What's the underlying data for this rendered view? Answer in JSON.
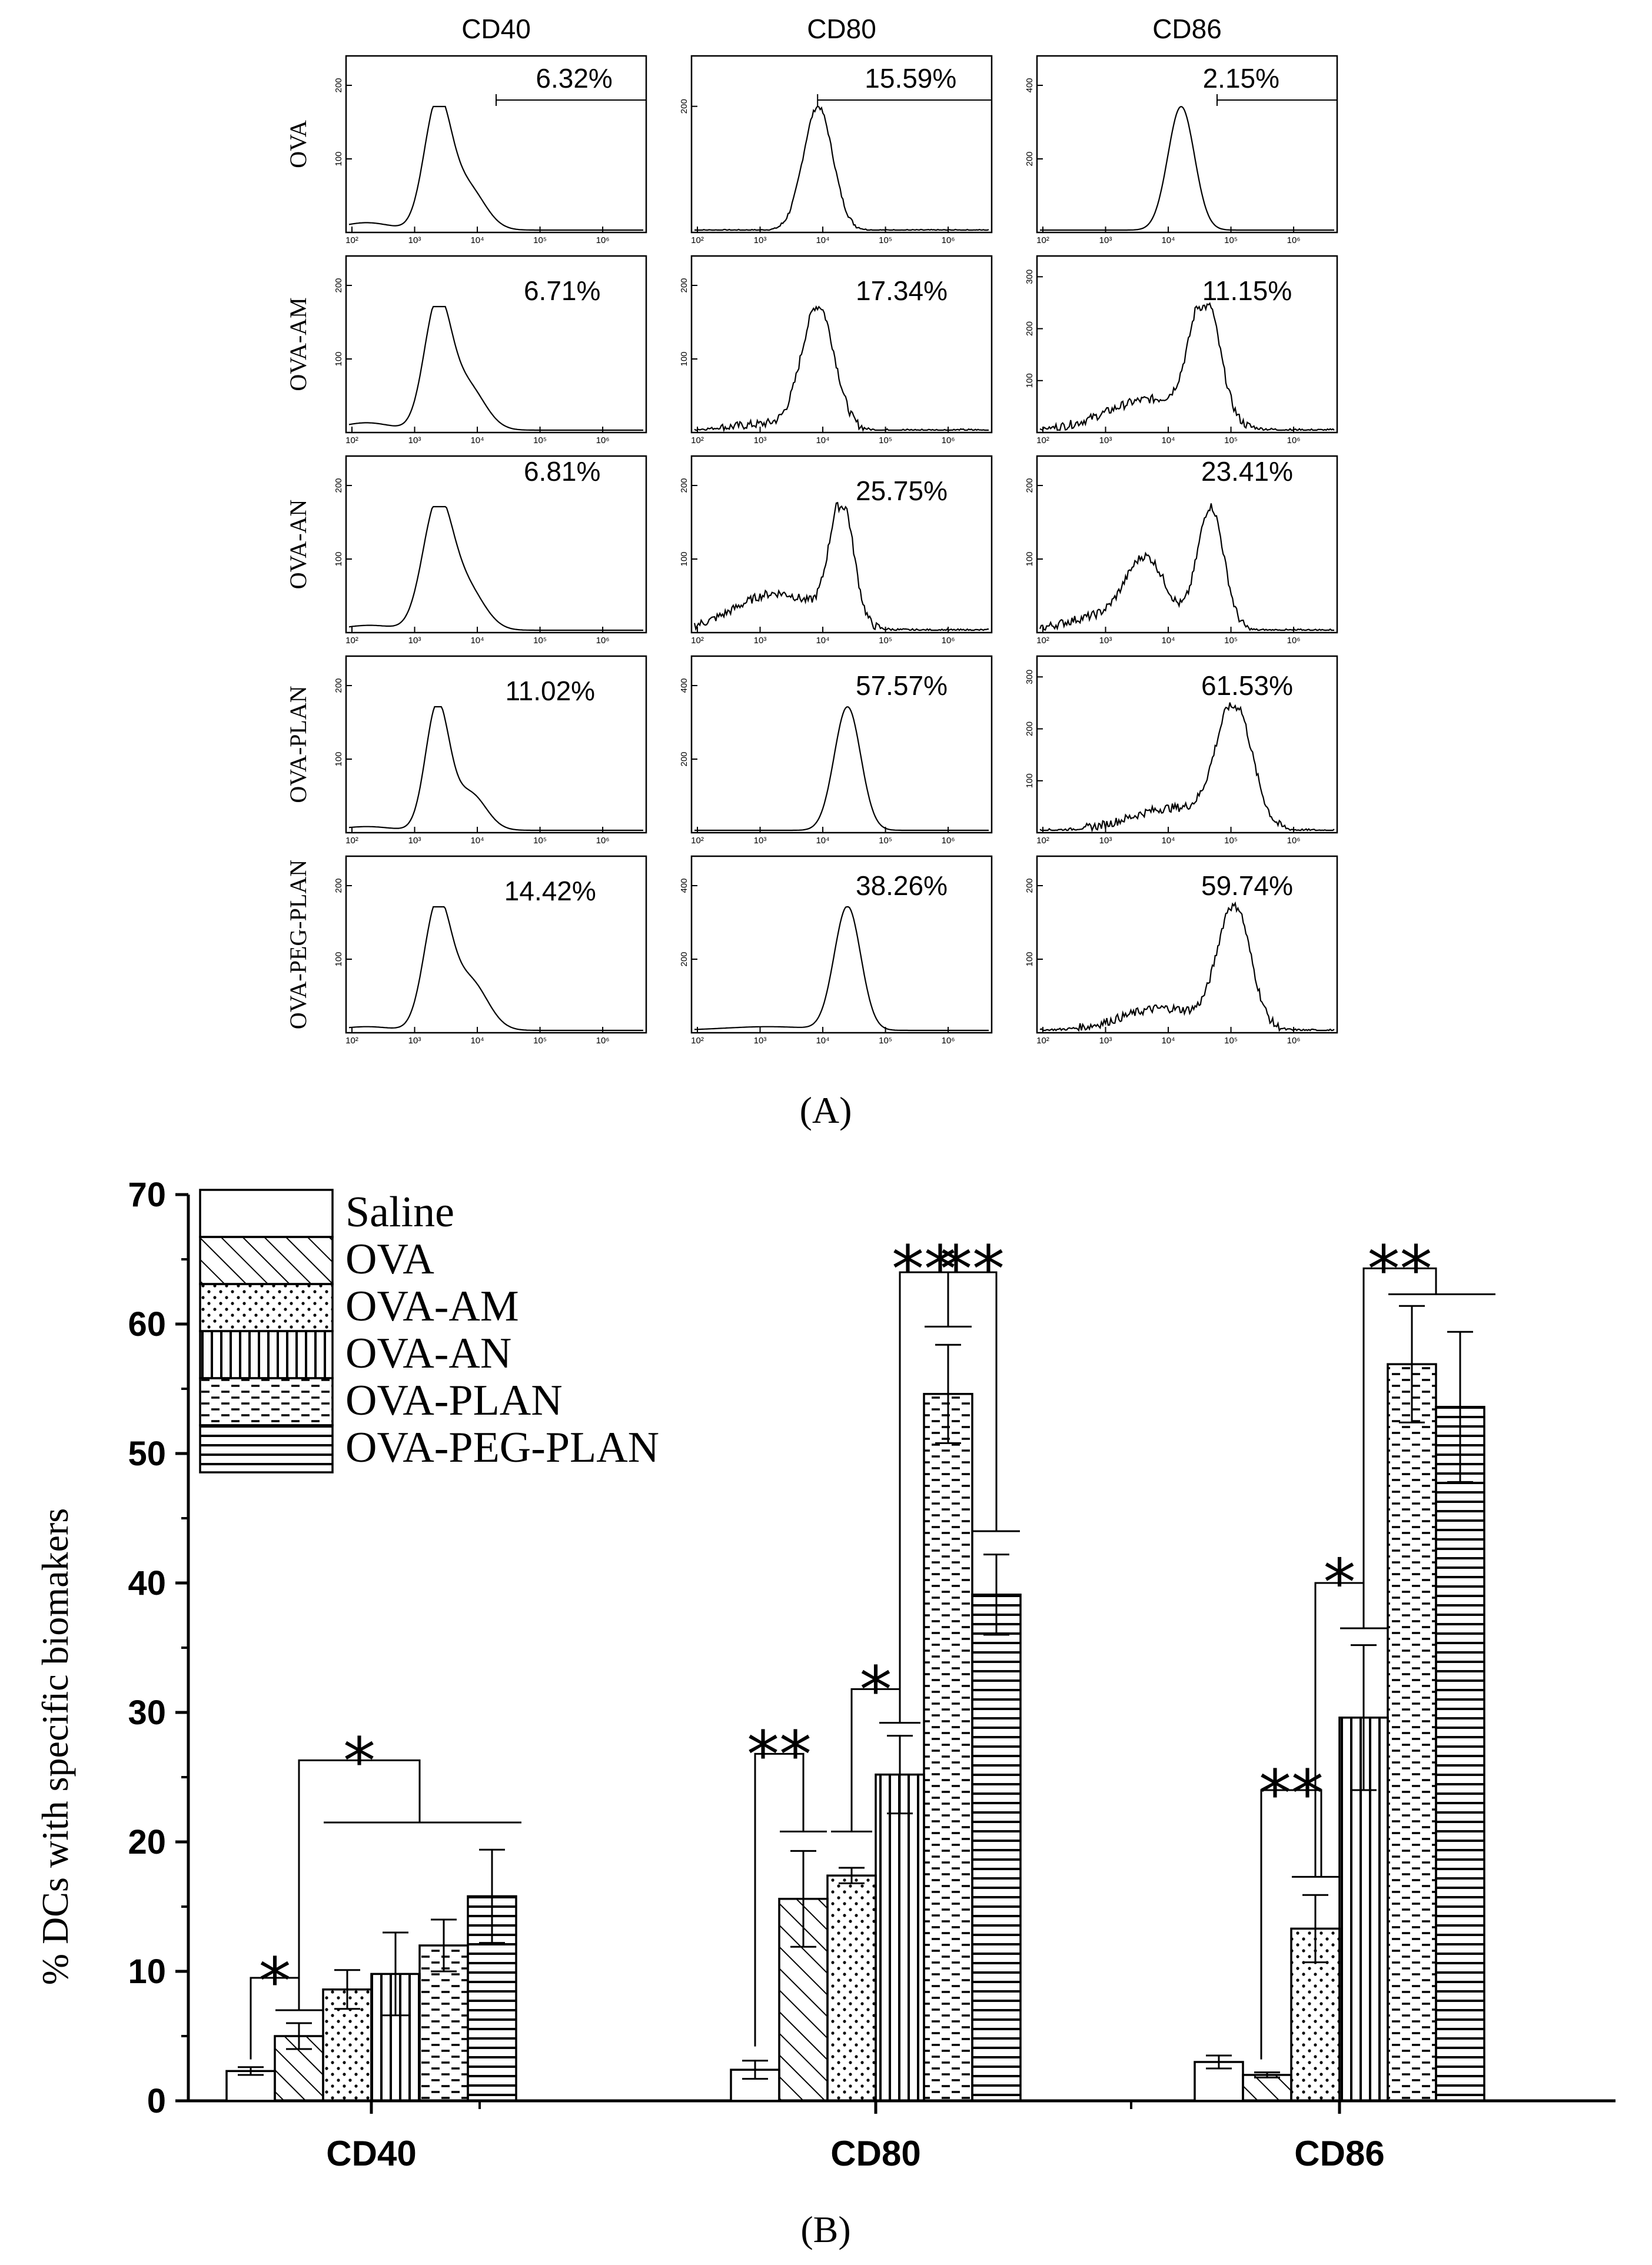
{
  "panel_a": {
    "columns": [
      "CD40",
      "CD80",
      "CD86"
    ],
    "rows": [
      "OVA",
      "OVA-AM",
      "OVA-AN",
      "OVA-PLAN",
      "OVA-PEG-PLAN"
    ],
    "percentages": [
      [
        "6.32%",
        "15.59%",
        "2.15%"
      ],
      [
        "6.71%",
        "17.34%",
        "11.15%"
      ],
      [
        "6.81%",
        "25.75%",
        "23.41%"
      ],
      [
        "11.02%",
        "57.57%",
        "61.53%"
      ],
      [
        "14.42%",
        "38.26%",
        "59.74%"
      ]
    ],
    "x_ticks": [
      "10²",
      "10³",
      "10⁴",
      "10⁵",
      "10⁶"
    ],
    "y_ticks": [
      [
        [
          "100",
          "200"
        ],
        [
          "200"
        ],
        [
          "200",
          "400"
        ]
      ],
      [
        [
          "100",
          "200"
        ],
        [
          "100",
          "200"
        ],
        [
          "100",
          "200",
          "300"
        ]
      ],
      [
        [
          "100",
          "200"
        ],
        [
          "100",
          "200"
        ],
        [
          "100",
          "200"
        ]
      ],
      [
        [
          "100",
          "200"
        ],
        [
          "200",
          "400"
        ],
        [
          "100",
          "200",
          "300"
        ]
      ],
      [
        [
          "100",
          "200"
        ],
        [
          "200",
          "400"
        ],
        [
          "100",
          "200"
        ]
      ]
    ],
    "label": "(A)"
  },
  "chart_data": {
    "type": "bar",
    "title": "",
    "label": "(B)",
    "ylabel": "% DCs with specific biomakers",
    "xlabel": "",
    "ylim": [
      0,
      70
    ],
    "y_ticks": [
      "0",
      "10",
      "20",
      "30",
      "40",
      "50",
      "60",
      "70"
    ],
    "categories": [
      "CD40",
      "CD80",
      "CD86"
    ],
    "series": [
      {
        "name": "Saline",
        "values": [
          2.3,
          2.4,
          3.0
        ],
        "errors": [
          0.3,
          0.7,
          0.5
        ]
      },
      {
        "name": "OVA",
        "values": [
          5.0,
          15.6,
          2.0
        ],
        "errors": [
          1.0,
          3.7,
          0.2
        ]
      },
      {
        "name": "OVA-AM",
        "values": [
          8.6,
          17.4,
          13.3
        ],
        "errors": [
          1.5,
          0.6,
          2.6
        ]
      },
      {
        "name": "OVA-AN",
        "values": [
          9.8,
          25.2,
          29.6
        ],
        "errors": [
          3.2,
          3.0,
          5.6
        ]
      },
      {
        "name": "OVA-PLAN",
        "values": [
          12.0,
          54.6,
          56.9
        ],
        "errors": [
          2.0,
          3.8,
          4.5
        ]
      },
      {
        "name": "OVA-PEG-PLAN",
        "values": [
          15.8,
          39.1,
          53.6
        ],
        "errors": [
          3.6,
          3.1,
          5.8
        ]
      }
    ],
    "significance": [
      "*",
      "*",
      "**",
      "*",
      "**",
      "**",
      "**",
      "*",
      "**"
    ],
    "legend": "top-left"
  }
}
